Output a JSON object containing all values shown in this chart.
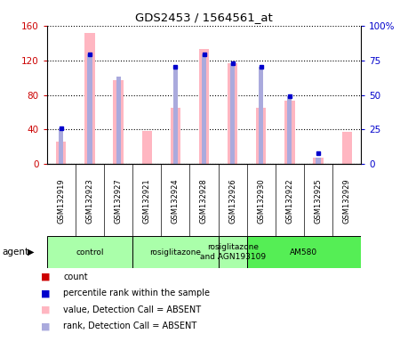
{
  "title": "GDS2453 / 1564561_at",
  "samples": [
    "GSM132919",
    "GSM132923",
    "GSM132927",
    "GSM132921",
    "GSM132924",
    "GSM132928",
    "GSM132926",
    "GSM132930",
    "GSM132922",
    "GSM132925",
    "GSM132929"
  ],
  "value_absent": [
    26,
    152,
    97,
    38,
    65,
    133,
    117,
    65,
    73,
    8,
    37
  ],
  "rank_absent": [
    26,
    79,
    63,
    0,
    70,
    79,
    73,
    70,
    49,
    5,
    0
  ],
  "percentile_rank": [
    26,
    79,
    0,
    0,
    70,
    79,
    73,
    70,
    49,
    8,
    0
  ],
  "count": [
    0,
    0,
    0,
    0,
    0,
    0,
    0,
    0,
    0,
    0,
    0
  ],
  "agent_groups": [
    {
      "label": "control",
      "start": 0,
      "end": 3,
      "color": "#AAFFAA"
    },
    {
      "label": "rosiglitazone",
      "start": 3,
      "end": 6,
      "color": "#AAFFAA"
    },
    {
      "label": "rosiglitazone\nand AGN193109",
      "start": 6,
      "end": 7,
      "color": "#AAFFAA"
    },
    {
      "label": "AM580",
      "start": 7,
      "end": 11,
      "color": "#55EE55"
    }
  ],
  "ylim_left": [
    0,
    160
  ],
  "ylim_right": [
    0,
    100
  ],
  "yticks_left": [
    0,
    40,
    80,
    120,
    160
  ],
  "yticks_right": [
    0,
    25,
    50,
    75,
    100
  ],
  "yticklabels_left": [
    "0",
    "40",
    "80",
    "120",
    "160"
  ],
  "yticklabels_right": [
    "0",
    "25",
    "50",
    "75",
    "100%"
  ],
  "left_color": "#CC0000",
  "right_color": "#0000CC",
  "bar_pink": "#FFB6C1",
  "bar_lavender": "#AAAADD",
  "bar_red": "#CC0000",
  "bar_blue": "#0000CC",
  "bg_color": "#FFFFFF",
  "legend_items": [
    {
      "color": "#CC0000",
      "label": "count"
    },
    {
      "color": "#0000CC",
      "label": "percentile rank within the sample"
    },
    {
      "color": "#FFB6C1",
      "label": "value, Detection Call = ABSENT"
    },
    {
      "color": "#AAAADD",
      "label": "rank, Detection Call = ABSENT"
    }
  ]
}
